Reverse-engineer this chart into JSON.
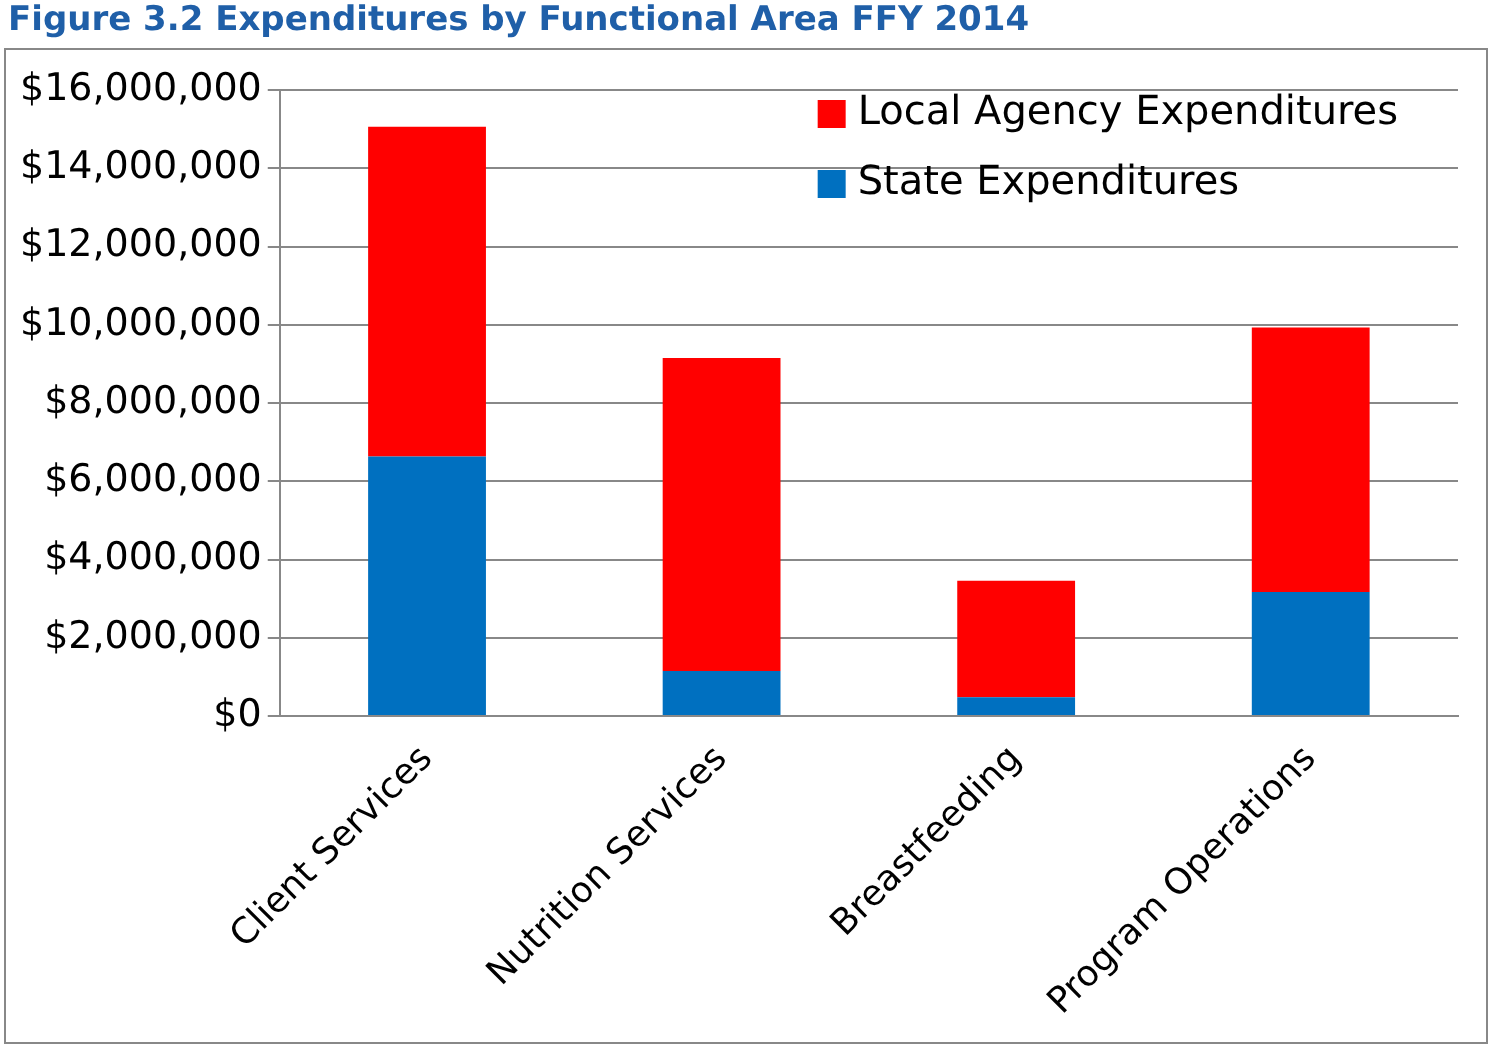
{
  "chart_data": {
    "type": "bar",
    "title": "Figure 3.2 Expenditures by Functional Area FFY 2014",
    "categories": [
      "Client Services",
      "Nutrition Services",
      "Breastfeeding",
      "Program Operations"
    ],
    "series": [
      {
        "name": "State Expenditures",
        "color": "#0070c0",
        "values": [
          6630000,
          1150000,
          480000,
          3170000
        ]
      },
      {
        "name": "Local Agency Expenditures",
        "color": "#ff0000",
        "values": [
          8430000,
          8000000,
          2980000,
          6760000
        ]
      }
    ],
    "stacked": true,
    "ylim": [
      0,
      16000000
    ],
    "yticks": [
      {
        "value": 0,
        "label": "$0"
      },
      {
        "value": 2000000,
        "label": "$2,000,000"
      },
      {
        "value": 4000000,
        "label": "$4,000,000"
      },
      {
        "value": 6000000,
        "label": "$6,000,000"
      },
      {
        "value": 8000000,
        "label": "$8,000,000"
      },
      {
        "value": 10000000,
        "label": "$10,000,000"
      },
      {
        "value": 12000000,
        "label": "$12,000,000"
      },
      {
        "value": 14000000,
        "label": "$14,000,000"
      },
      {
        "value": 16000000,
        "label": "$16,000,000"
      }
    ],
    "grid": "y",
    "legend": "top right"
  }
}
